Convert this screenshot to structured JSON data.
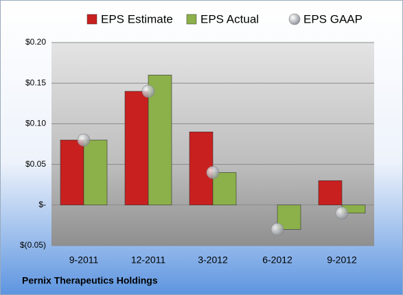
{
  "chart_data": {
    "type": "bar",
    "footer": "Pernix Therapeutics Holdings",
    "categories": [
      "9-2011",
      "12-2011",
      "3-2012",
      "6-2012",
      "9-2012"
    ],
    "series": [
      {
        "name": "EPS Estimate",
        "color": "#c8201f",
        "values": [
          0.08,
          0.14,
          0.09,
          null,
          0.03
        ]
      },
      {
        "name": "EPS Actual",
        "color": "#8cb04a",
        "values": [
          0.08,
          0.16,
          0.04,
          -0.03,
          -0.01
        ]
      },
      {
        "name": "EPS GAAP",
        "type": "scatter",
        "color": "#b8bcc4",
        "values": [
          0.08,
          0.14,
          0.04,
          -0.03,
          -0.01
        ]
      }
    ],
    "ylim": [
      -0.05,
      0.2
    ],
    "yticks": [
      {
        "value": 0.2,
        "label": "$0.20"
      },
      {
        "value": 0.15,
        "label": "$0.15"
      },
      {
        "value": 0.1,
        "label": "$0.10"
      },
      {
        "value": 0.05,
        "label": "$0.05"
      },
      {
        "value": 0,
        "label": "$-"
      },
      {
        "value": -0.05,
        "label": "$(0.05)"
      }
    ],
    "grid": true
  }
}
